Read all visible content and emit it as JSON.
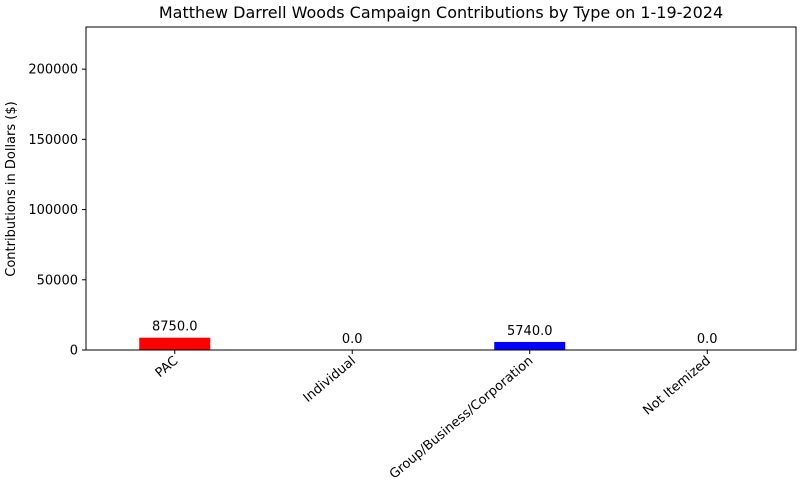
{
  "chart_data": {
    "type": "bar",
    "title": "Matthew Darrell Woods Campaign Contributions by Type on 1-19-2024",
    "xlabel": "",
    "ylabel": "Contributions in Dollars ($)",
    "categories": [
      "PAC",
      "Individual",
      "Group/Business/Corporation",
      "Not Itemized"
    ],
    "values": [
      8750.0,
      0.0,
      5740.0,
      0.0
    ],
    "value_labels": [
      "8750.0",
      "0.0",
      "5740.0",
      "0.0"
    ],
    "colors": [
      "#ff0000",
      "#008000",
      "#0000ff",
      "#ffa500"
    ],
    "ylim": [
      0,
      230000
    ],
    "yticks": [
      0,
      50000,
      100000,
      150000,
      200000
    ],
    "ytick_labels": [
      "0",
      "50000",
      "100000",
      "150000",
      "200000"
    ],
    "grid": false,
    "legend": "none"
  }
}
